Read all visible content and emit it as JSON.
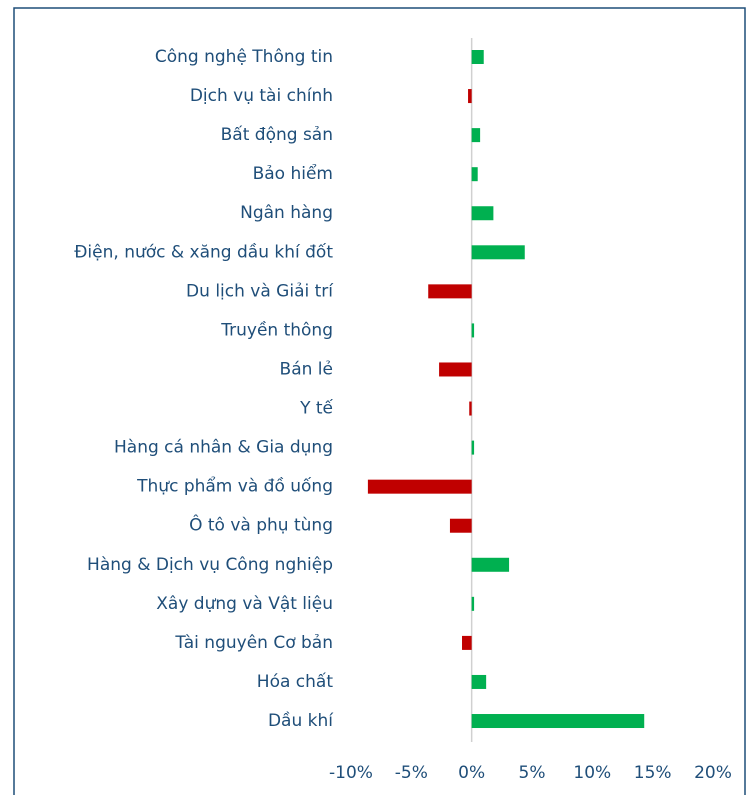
{
  "chart_data": {
    "type": "bar",
    "orientation": "horizontal",
    "categories": [
      "Công nghệ Thông tin",
      "Dịch vụ tài chính",
      "Bất động sản",
      "Bảo hiểm",
      "Ngân hàng",
      "Điện, nước & xăng dầu khí đốt",
      "Du lịch và Giải trí",
      "Truyền thông",
      "Bán lẻ",
      "Y tế",
      "Hàng cá nhân & Gia dụng",
      "Thực phẩm và đồ uống",
      "Ô tô và phụ tùng",
      "Hàng & Dịch vụ Công nghiệp",
      "Xây dựng và Vật liệu",
      "Tài nguyên Cơ bản",
      "Hóa chất",
      "Dầu khí"
    ],
    "values": [
      1.0,
      -0.3,
      0.7,
      0.5,
      1.8,
      4.4,
      -3.6,
      0.2,
      -2.7,
      -0.2,
      0.2,
      -8.6,
      -1.8,
      3.1,
      0.2,
      -0.8,
      1.2,
      14.3
    ],
    "positive_color": "#00b050",
    "negative_color": "#c00000",
    "xlim": [
      -10,
      20
    ],
    "xticks": [
      {
        "value": -10,
        "label": "-10%"
      },
      {
        "value": -5,
        "label": "-5%"
      },
      {
        "value": 0,
        "label": "0%"
      },
      {
        "value": 5,
        "label": "5%"
      },
      {
        "value": 10,
        "label": "10%"
      },
      {
        "value": 15,
        "label": "15%"
      },
      {
        "value": 20,
        "label": "20%"
      }
    ]
  }
}
